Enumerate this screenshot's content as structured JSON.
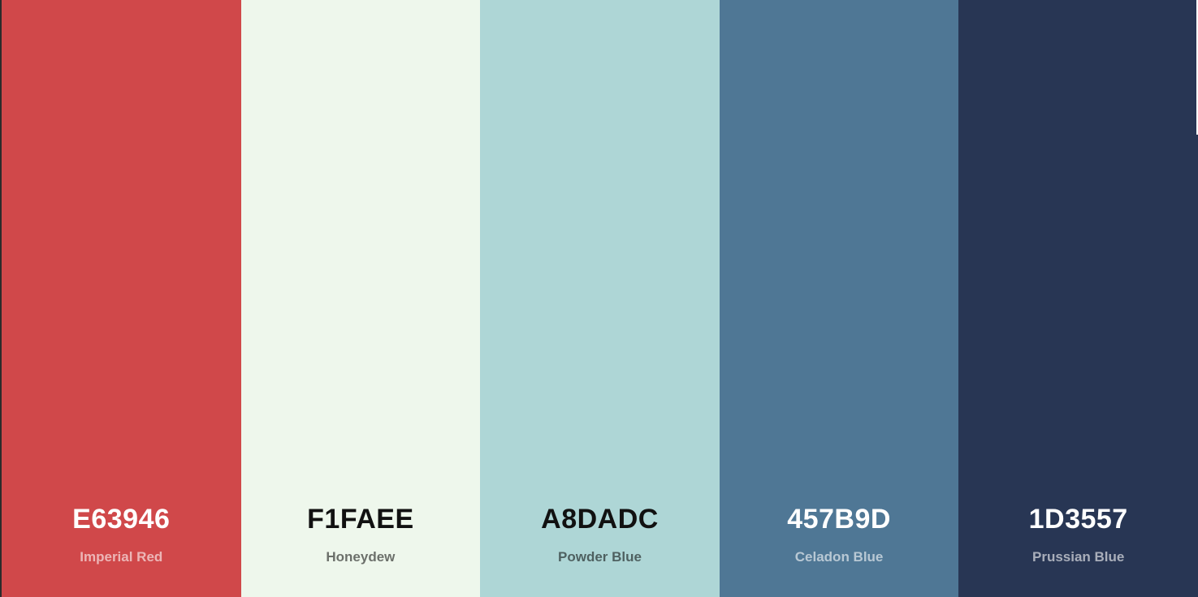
{
  "palette": {
    "swatches": [
      {
        "hex_label": "E63946",
        "name": "Imperial Red",
        "color": "#d0484a",
        "tone": "dark"
      },
      {
        "hex_label": "F1FAEE",
        "name": "Honeydew",
        "color": "#eef7ec",
        "tone": "light"
      },
      {
        "hex_label": "A8DADC",
        "name": "Powder Blue",
        "color": "#aed6d6",
        "tone": "light"
      },
      {
        "hex_label": "457B9D",
        "name": "Celadon Blue",
        "color": "#4f7795",
        "tone": "dark"
      },
      {
        "hex_label": "1D3557",
        "name": "Prussian Blue",
        "color": "#283654",
        "tone": "dark"
      }
    ]
  }
}
